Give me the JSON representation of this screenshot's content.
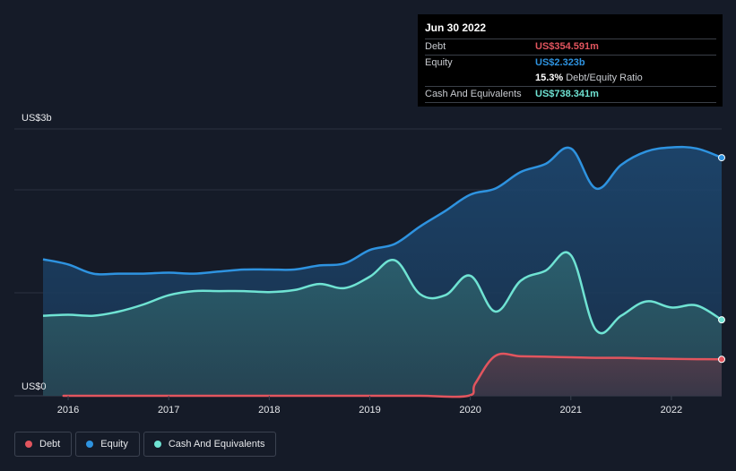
{
  "tooltip": {
    "date": "Jun 30 2022",
    "debt_label": "Debt",
    "debt_value": "US$354.591m",
    "equity_label": "Equity",
    "equity_value": "US$2.323b",
    "ratio_value": "15.3%",
    "ratio_label": "Debt/Equity Ratio",
    "cash_label": "Cash And Equivalents",
    "cash_value": "US$738.341m"
  },
  "legend": {
    "debt": "Debt",
    "equity": "Equity",
    "cash": "Cash And Equivalents"
  },
  "colors": {
    "debt": "#e2555e",
    "equity": "#2e93e0",
    "cash": "#6fe3d3",
    "background": "#151b28"
  },
  "chart_data": {
    "type": "area",
    "ylim": [
      0,
      2.6
    ],
    "y_unit_labels": [
      "US$3b",
      "US$0"
    ],
    "x_ticks": [
      "2016",
      "2017",
      "2018",
      "2019",
      "2020",
      "2021",
      "2022"
    ],
    "series": [
      {
        "name": "Equity",
        "x": [
          2015.75,
          2016.0,
          2016.25,
          2016.5,
          2016.75,
          2017.0,
          2017.25,
          2017.5,
          2017.75,
          2018.0,
          2018.25,
          2018.5,
          2018.75,
          2019.0,
          2019.25,
          2019.5,
          2019.75,
          2020.0,
          2020.25,
          2020.5,
          2020.75,
          2021.0,
          2021.25,
          2021.5,
          2021.75,
          2022.0,
          2022.25,
          2022.5
        ],
        "values": [
          1.33,
          1.28,
          1.19,
          1.19,
          1.19,
          1.2,
          1.19,
          1.21,
          1.23,
          1.23,
          1.23,
          1.27,
          1.29,
          1.42,
          1.48,
          1.65,
          1.8,
          1.96,
          2.02,
          2.18,
          2.26,
          2.41,
          2.02,
          2.25,
          2.38,
          2.42,
          2.41,
          2.32
        ]
      },
      {
        "name": "Cash And Equivalents",
        "x": [
          2015.75,
          2016.0,
          2016.25,
          2016.5,
          2016.75,
          2017.0,
          2017.25,
          2017.5,
          2017.75,
          2018.0,
          2018.25,
          2018.5,
          2018.75,
          2019.0,
          2019.25,
          2019.5,
          2019.75,
          2020.0,
          2020.25,
          2020.5,
          2020.75,
          2021.0,
          2021.25,
          2021.5,
          2021.75,
          2022.0,
          2022.25,
          2022.5
        ],
        "values": [
          0.78,
          0.79,
          0.78,
          0.82,
          0.89,
          0.98,
          1.02,
          1.02,
          1.02,
          1.01,
          1.03,
          1.09,
          1.05,
          1.16,
          1.32,
          0.99,
          0.98,
          1.17,
          0.82,
          1.12,
          1.22,
          1.37,
          0.64,
          0.78,
          0.92,
          0.86,
          0.88,
          0.74
        ]
      },
      {
        "name": "Debt",
        "x": [
          2015.75,
          2016.0,
          2016.5,
          2017.0,
          2017.5,
          2018.0,
          2018.5,
          2019.0,
          2019.5,
          2019.98,
          2020.05,
          2020.25,
          2020.5,
          2020.75,
          2021.0,
          2021.25,
          2021.5,
          2021.75,
          2022.0,
          2022.25,
          2022.5
        ],
        "values": [
          0.0,
          0.0,
          0.0,
          0.0,
          0.0,
          0.0,
          0.0,
          0.0,
          0.0,
          0.0,
          0.12,
          0.39,
          0.385,
          0.38,
          0.375,
          0.37,
          0.37,
          0.365,
          0.36,
          0.357,
          0.355
        ]
      }
    ]
  }
}
